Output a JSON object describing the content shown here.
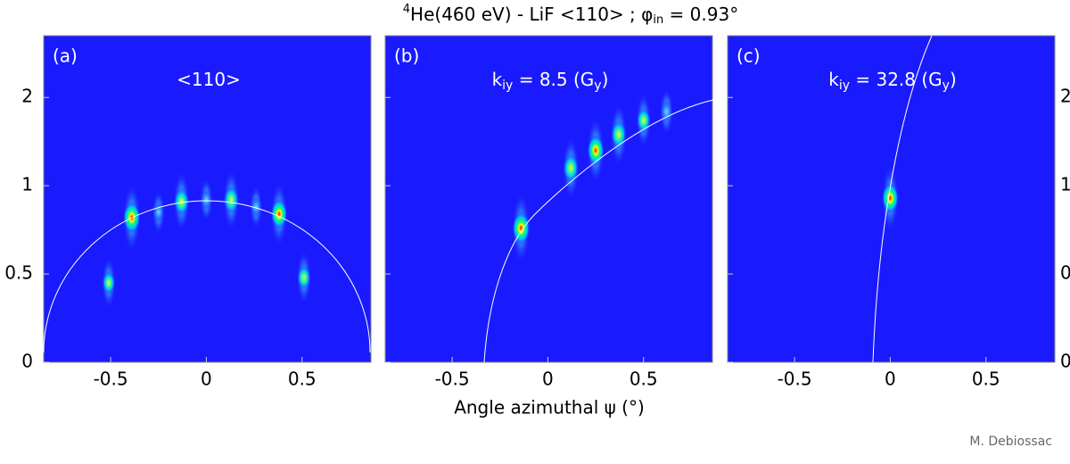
{
  "title_parts": [
    "4",
    "He(460 eV) - LiF <110> ; φ",
    "in",
    " = 0.93°"
  ],
  "xlabel": "Angle azimuthal ψ (°)",
  "credit": "M. Debiossac",
  "chart_data": [
    {
      "type": "scatter",
      "panel_label": "(a)",
      "annotation_parts": [
        "<110>"
      ],
      "xlim": [
        -0.85,
        0.86
      ],
      "ylim": [
        0,
        1.85
      ],
      "xticks": [
        -0.5,
        0,
        0.5
      ],
      "yticks": [
        0,
        0.5,
        1,
        {
          "value": 1.5,
          "label": "2"
        }
      ],
      "left_tick_labels": true,
      "right_tick_labels": false,
      "spots": {
        "x": [
          -0.51,
          -0.39,
          -0.25,
          -0.13,
          0,
          0.13,
          0.26,
          0.38,
          0.51
        ],
        "y": [
          0.45,
          0.82,
          0.85,
          0.91,
          0.92,
          0.92,
          0.88,
          0.84,
          0.48
        ],
        "intensity": [
          0.5,
          0.95,
          0.3,
          0.75,
          0.3,
          0.75,
          0.3,
          0.85,
          0.55
        ]
      }
    },
    {
      "type": "scatter",
      "panel_label": "(b)",
      "annotation_parts": [
        "k",
        "iy",
        " = 8.5 (G",
        "y",
        ")"
      ],
      "xlim": [
        -0.85,
        0.86
      ],
      "ylim": [
        0,
        1.85
      ],
      "xticks": [
        -0.5,
        0,
        0.5
      ],
      "yticks": [
        0,
        0.5,
        1,
        {
          "value": 1.5,
          "label": "2"
        }
      ],
      "left_tick_labels": false,
      "right_tick_labels": false,
      "spots": {
        "x": [
          -0.14,
          0.12,
          0.25,
          0.37,
          0.5,
          0.62
        ],
        "y": [
          0.76,
          1.1,
          1.2,
          1.29,
          1.37,
          1.42
        ],
        "intensity": [
          1,
          0.8,
          0.9,
          0.8,
          0.6,
          0.4
        ]
      }
    },
    {
      "type": "scatter",
      "panel_label": "(c)",
      "annotation_parts": [
        "k",
        "iy",
        " = 32.8 (G",
        "y",
        ")"
      ],
      "xlim": [
        -0.85,
        0.86
      ],
      "ylim": [
        0,
        1.85
      ],
      "xticks": [
        -0.5,
        0,
        0.5
      ],
      "yticks": [
        0,
        0.5,
        1,
        {
          "value": 1.5,
          "label": "2"
        }
      ],
      "left_tick_labels": false,
      "right_tick_labels": true,
      "spots": {
        "x": [
          0
        ],
        "y": [
          0.93
        ],
        "intensity": [
          0.9
        ]
      }
    }
  ]
}
